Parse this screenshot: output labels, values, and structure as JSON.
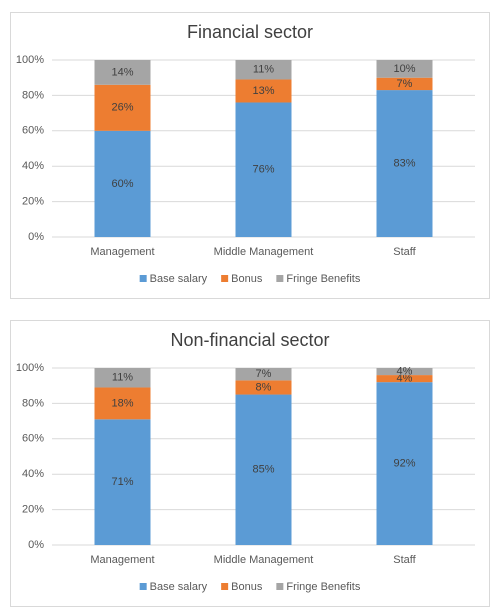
{
  "chart_data": [
    {
      "type": "bar",
      "stacked": true,
      "title": "Financial sector",
      "categories": [
        "Management",
        "Middle Management",
        "Staff"
      ],
      "series": [
        {
          "name": "Base salary",
          "color": "#5b9bd5",
          "values": [
            60,
            76,
            83
          ],
          "value_labels": [
            "60%",
            "76%",
            "83%"
          ]
        },
        {
          "name": "Bonus",
          "color": "#ed7d31",
          "values": [
            26,
            13,
            7
          ],
          "value_labels": [
            "26%",
            "13%",
            "7%"
          ]
        },
        {
          "name": "Fringe Benefits",
          "color": "#a5a5a5",
          "values": [
            14,
            11,
            10
          ],
          "value_labels": [
            "14%",
            "11%",
            "10%"
          ]
        }
      ],
      "ylim": [
        0,
        100
      ],
      "yticks": [
        {
          "value": 0,
          "label": "0%"
        },
        {
          "value": 20,
          "label": "20%"
        },
        {
          "value": 40,
          "label": "40%"
        },
        {
          "value": 60,
          "label": "60%"
        },
        {
          "value": 80,
          "label": "80%"
        },
        {
          "value": 100,
          "label": "100%"
        }
      ],
      "grid": true,
      "legend": "bottom"
    },
    {
      "type": "bar",
      "stacked": true,
      "title": "Non-financial sector",
      "categories": [
        "Management",
        "Middle Management",
        "Staff"
      ],
      "series": [
        {
          "name": "Base salary",
          "color": "#5b9bd5",
          "values": [
            71,
            85,
            92
          ],
          "value_labels": [
            "71%",
            "85%",
            "92%"
          ]
        },
        {
          "name": "Bonus",
          "color": "#ed7d31",
          "values": [
            18,
            8,
            4
          ],
          "value_labels": [
            "18%",
            "8%",
            "4%"
          ]
        },
        {
          "name": "Fringe Benefits",
          "color": "#a5a5a5",
          "values": [
            11,
            7,
            4
          ],
          "value_labels": [
            "11%",
            "7%",
            "4%"
          ]
        }
      ],
      "ylim": [
        0,
        100
      ],
      "yticks": [
        {
          "value": 0,
          "label": "0%"
        },
        {
          "value": 20,
          "label": "20%"
        },
        {
          "value": 40,
          "label": "40%"
        },
        {
          "value": 60,
          "label": "60%"
        },
        {
          "value": 80,
          "label": "80%"
        },
        {
          "value": 100,
          "label": "100%"
        }
      ],
      "grid": true,
      "legend": "bottom"
    }
  ]
}
